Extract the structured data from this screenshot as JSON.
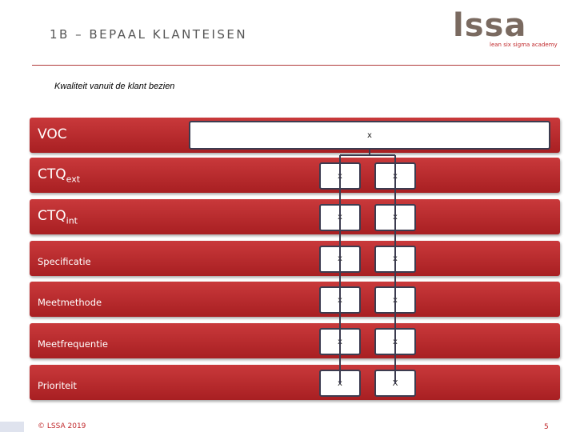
{
  "header": {
    "title": "1B – BEPAAL KLANTEISEN",
    "logo": "lssa",
    "logo_tagline": "lean six sigma academy"
  },
  "subtitle": "Kwaliteit vanuit de klant bezien",
  "voc": {
    "label": "VOC",
    "cell": "x"
  },
  "rows": [
    {
      "label": "CTQ",
      "sub": "ext",
      "cells": [
        "x",
        "x"
      ]
    },
    {
      "label": "CTQ",
      "sub": "int",
      "cells": [
        "x",
        "x"
      ]
    },
    {
      "label": "Specificatie",
      "cells": [
        "x",
        "x"
      ]
    },
    {
      "label": "Meetmethode",
      "cells": [
        "x",
        "x"
      ]
    },
    {
      "label": "Meetfrequentie",
      "cells": [
        "x",
        "x"
      ]
    },
    {
      "label": "Prioriteit",
      "cells": [
        "x",
        "X"
      ]
    }
  ],
  "footer": {
    "copyright": "© LSSA 2019",
    "page": "5"
  }
}
